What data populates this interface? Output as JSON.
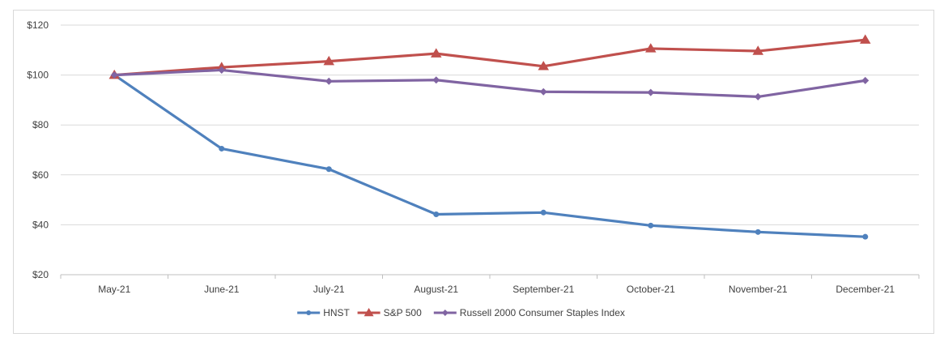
{
  "chart_data": {
    "type": "line",
    "title": "",
    "xlabel": "",
    "ylabel": "",
    "categories": [
      "May-21",
      "June-21",
      "July-21",
      "August-21",
      "September-21",
      "October-21",
      "November-21",
      "December-21"
    ],
    "ylim": [
      20,
      120
    ],
    "yticks": [
      20,
      40,
      60,
      80,
      100,
      120
    ],
    "ytick_labels": [
      "$20",
      "$40",
      "$60",
      "$80",
      "$100",
      "$120"
    ],
    "grid": true,
    "legend_position": "bottom",
    "series": [
      {
        "name": "HNST",
        "color": "#4f81bd",
        "marker": "circle",
        "values": [
          100,
          70.5,
          62.3,
          44.2,
          44.9,
          39.7,
          37.1,
          35.2
        ]
      },
      {
        "name": "S&P 500",
        "color": "#c0504d",
        "marker": "triangle",
        "values": [
          100,
          103.1,
          105.5,
          108.6,
          103.5,
          110.6,
          109.6,
          114.1
        ]
      },
      {
        "name": "Russell 2000 Consumer Staples Index",
        "color": "#8064a2",
        "marker": "diamond",
        "values": [
          100,
          102.0,
          97.5,
          98.0,
          93.3,
          93.0,
          91.3,
          97.8
        ]
      }
    ]
  }
}
